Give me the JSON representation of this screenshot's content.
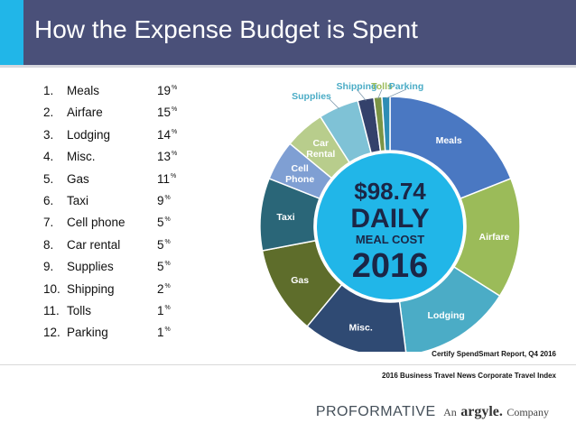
{
  "header": {
    "title": "How the Expense Budget is Spent"
  },
  "list": [
    {
      "num": "1.",
      "label": "Meals",
      "value": "19",
      "unit": "%"
    },
    {
      "num": "2.",
      "label": "Airfare",
      "value": "15",
      "unit": "%"
    },
    {
      "num": "3.",
      "label": "Lodging",
      "value": "14",
      "unit": "%"
    },
    {
      "num": "4.",
      "label": "Misc.",
      "value": "13",
      "unit": "%"
    },
    {
      "num": "5.",
      "label": "Gas",
      "value": "11",
      "unit": "%"
    },
    {
      "num": "6.",
      "label": "Taxi",
      "value": "9",
      "unit": "%"
    },
    {
      "num": "7.",
      "label": "Cell phone",
      "value": "5",
      "unit": "%"
    },
    {
      "num": "8.",
      "label": "Car rental",
      "value": "5",
      "unit": "%"
    },
    {
      "num": "9.",
      "label": "Supplies",
      "value": "5",
      "unit": "%"
    },
    {
      "num": "10.",
      "label": "Shipping",
      "value": "2",
      "unit": "%"
    },
    {
      "num": "11.",
      "label": "Tolls",
      "value": "1",
      "unit": "%"
    },
    {
      "num": "12.",
      "label": "Parking",
      "value": "1",
      "unit": "%"
    }
  ],
  "chart_data": {
    "type": "pie",
    "categories": [
      "Meals",
      "Airfare",
      "Lodging",
      "Misc.",
      "Gas",
      "Taxi",
      "Cell Phone",
      "Car Rental",
      "Supplies",
      "Shipping",
      "Tolls",
      "Parking"
    ],
    "values": [
      19,
      15,
      14,
      13,
      11,
      9,
      5,
      5,
      5,
      2,
      1,
      1
    ],
    "colors": [
      "#4a78c2",
      "#9bbb59",
      "#4bacc6",
      "#2f4a73",
      "#5e6d2b",
      "#2a6678",
      "#7f9fd3",
      "#b8cd8c",
      "#7fc2d6",
      "#34416b",
      "#7b9446",
      "#2e8db5"
    ],
    "label_colors": [
      "#ffffff",
      "#ffffff",
      "#ffffff",
      "#ffffff",
      "#ffffff",
      "#ffffff",
      "#ffffff",
      "#ffffff",
      "#4bacc6",
      "#4bacc6",
      "#9bbb59",
      "#4bacc6"
    ],
    "labels": [
      "Meals",
      "Airfare",
      "Lodging",
      "Misc.",
      "Gas",
      "Taxi",
      "Cell\nPhone",
      "Car\nRental",
      "Supplies",
      "Shipping",
      "Tolls",
      "Parking"
    ],
    "center": {
      "amount": "$98.74",
      "word": "DAILY",
      "caption": "MEAL COST",
      "year": "2016",
      "fill": "#21b6e8"
    }
  },
  "sources": {
    "line1": "Certify SpendSmart Report, Q4 2016",
    "line2": "2016 Business Travel News Corporate Travel Index"
  },
  "logo": {
    "main": "PROFORMATIVE",
    "an": "An",
    "brand": "argyle.",
    "company": "Company"
  }
}
